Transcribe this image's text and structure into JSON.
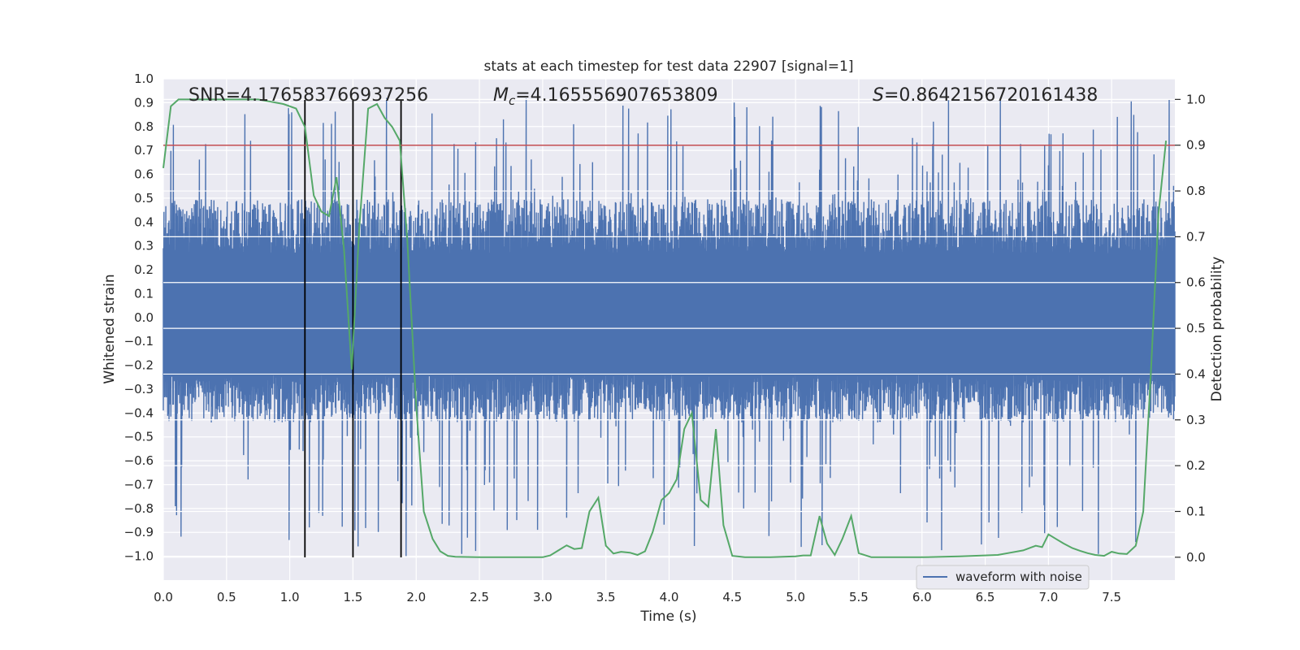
{
  "chart_data": {
    "type": "line",
    "title": "stats at each timestep for test data 22907 [signal=1]",
    "xlabel": "Time (s)",
    "ylabel": "Whitened strain",
    "y2label": "Detection probability",
    "xlim": [
      0.0,
      8.0
    ],
    "ylim": [
      -1.1,
      1.0
    ],
    "y2lim": [
      -0.05,
      1.045
    ],
    "xticks": [
      0.0,
      0.5,
      1.0,
      1.5,
      2.0,
      2.5,
      3.0,
      3.5,
      4.0,
      4.5,
      5.0,
      5.5,
      6.0,
      6.5,
      7.0,
      7.5
    ],
    "xtick_labels": [
      "0.0",
      "0.5",
      "1.0",
      "1.5",
      "2.0",
      "2.5",
      "3.0",
      "3.5",
      "4.0",
      "4.5",
      "5.0",
      "5.5",
      "6.0",
      "6.5",
      "7.0",
      "7.5"
    ],
    "yticks": [
      1.0,
      0.9,
      0.8,
      0.7,
      0.6,
      0.5,
      0.4,
      0.3,
      0.2,
      0.1,
      0.0,
      -0.1,
      -0.2,
      -0.3,
      -0.4,
      -0.5,
      -0.6,
      -0.7,
      -0.8,
      -0.9,
      -1.0
    ],
    "ytick_labels": [
      "1.0",
      "0.9",
      "0.8",
      "0.7",
      "0.6",
      "0.5",
      "0.4",
      "0.3",
      "0.2",
      "0.1",
      "0.0",
      "−0.1",
      "−0.2",
      "−0.3",
      "−0.4",
      "−0.5",
      "−0.6",
      "−0.7",
      "−0.8",
      "−0.9",
      "−1.0"
    ],
    "y2ticks": [
      1.0,
      0.9,
      0.8,
      0.7,
      0.6,
      0.5,
      0.4,
      0.3,
      0.2,
      0.1,
      0.0
    ],
    "y2tick_labels": [
      "1.0",
      "0.9",
      "0.8",
      "0.7",
      "0.6",
      "0.5",
      "0.4",
      "0.3",
      "0.2",
      "0.1",
      "0.0"
    ],
    "annotations": {
      "snr": "SNR=4.176583766937256",
      "mc_symbol": "M",
      "mc_sub": "c",
      "mc_value": "=4.165556907653809",
      "s_symbol": "S",
      "s_value": "=0.8642156720161438"
    },
    "threshold": {
      "y2": 0.9,
      "color": "#c44e52"
    },
    "vlines_x": [
      1.12,
      1.5,
      1.88
    ],
    "series": [
      {
        "name": "waveform with noise",
        "color": "#4c72b0",
        "kind": "noise-envelope",
        "envelope_upper_typ": 0.45,
        "envelope_lower_typ": -0.4,
        "max": 0.92,
        "min": -1.0
      },
      {
        "name": "detection probability",
        "color": "#55a868",
        "axis": "y2",
        "x": [
          0.0,
          0.06,
          0.12,
          0.25,
          0.5,
          0.75,
          0.85,
          0.95,
          1.05,
          1.12,
          1.19,
          1.25,
          1.31,
          1.37,
          1.43,
          1.49,
          1.55,
          1.62,
          1.69,
          1.75,
          1.81,
          1.87,
          1.93,
          2.0,
          2.06,
          2.13,
          2.19,
          2.25,
          2.31,
          2.5,
          2.75,
          3.0,
          3.06,
          3.12,
          3.19,
          3.25,
          3.31,
          3.37,
          3.44,
          3.5,
          3.56,
          3.62,
          3.69,
          3.75,
          3.81,
          3.87,
          3.94,
          4.0,
          4.06,
          4.12,
          4.18,
          4.25,
          4.31,
          4.37,
          4.43,
          4.5,
          4.6,
          4.8,
          5.0,
          5.06,
          5.12,
          5.19,
          5.25,
          5.31,
          5.37,
          5.44,
          5.5,
          5.6,
          6.0,
          6.3,
          6.6,
          6.7,
          6.8,
          6.9,
          6.95,
          7.0,
          7.06,
          7.12,
          7.19,
          7.25,
          7.31,
          7.37,
          7.44,
          7.5,
          7.56,
          7.62,
          7.69,
          7.75,
          7.81,
          7.87,
          7.93
        ],
        "values": [
          0.85,
          0.985,
          1.0,
          1.0,
          1.0,
          1.0,
          0.995,
          0.99,
          0.98,
          0.94,
          0.79,
          0.755,
          0.745,
          0.83,
          0.67,
          0.41,
          0.72,
          0.98,
          0.99,
          0.96,
          0.94,
          0.91,
          0.69,
          0.33,
          0.1,
          0.04,
          0.013,
          0.003,
          0.001,
          0.0,
          0.0,
          0.0,
          0.004,
          0.014,
          0.026,
          0.018,
          0.02,
          0.1,
          0.13,
          0.025,
          0.008,
          0.012,
          0.01,
          0.005,
          0.013,
          0.055,
          0.125,
          0.14,
          0.17,
          0.28,
          0.315,
          0.125,
          0.11,
          0.28,
          0.07,
          0.003,
          0.0,
          0.0,
          0.002,
          0.004,
          0.004,
          0.09,
          0.03,
          0.005,
          0.04,
          0.09,
          0.009,
          0.0,
          0.0,
          0.002,
          0.005,
          0.01,
          0.015,
          0.025,
          0.022,
          0.05,
          0.04,
          0.03,
          0.02,
          0.014,
          0.009,
          0.005,
          0.003,
          0.012,
          0.008,
          0.007,
          0.025,
          0.1,
          0.4,
          0.75,
          0.91
        ]
      }
    ],
    "legend": {
      "label": "waveform with noise",
      "placement": "lower-right"
    },
    "grid": true
  }
}
